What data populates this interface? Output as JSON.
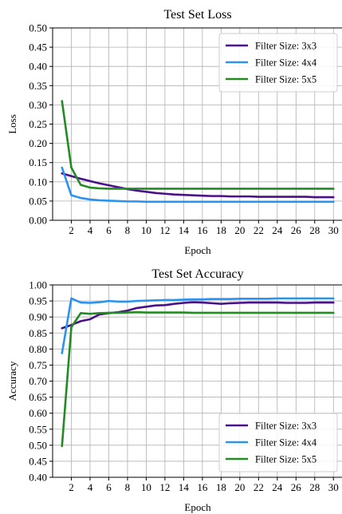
{
  "chart_data": [
    {
      "type": "line",
      "title": "Test Set Loss",
      "xlabel": "Epoch",
      "ylabel": "Loss",
      "xlim": [
        0,
        31
      ],
      "ylim": [
        0.0,
        0.5
      ],
      "xticks": [
        2,
        4,
        6,
        8,
        10,
        12,
        14,
        16,
        18,
        20,
        22,
        24,
        26,
        28,
        30
      ],
      "yticks": [
        0.0,
        0.05,
        0.1,
        0.15,
        0.2,
        0.25,
        0.3,
        0.35,
        0.4,
        0.45,
        0.5
      ],
      "ytick_labels": [
        "0.00",
        "0.05",
        "0.10",
        "0.15",
        "0.20",
        "0.25",
        "0.30",
        "0.35",
        "0.40",
        "0.45",
        "0.50"
      ],
      "grid": true,
      "legend_position": "top-right",
      "x": [
        1,
        2,
        3,
        4,
        5,
        6,
        7,
        8,
        9,
        10,
        11,
        12,
        13,
        14,
        15,
        16,
        17,
        18,
        19,
        20,
        21,
        22,
        23,
        24,
        25,
        26,
        27,
        28,
        29,
        30
      ],
      "series": [
        {
          "name": "Filter Size: 3x3",
          "color": "#4b0f8a",
          "values": [
            0.122,
            0.115,
            0.108,
            0.102,
            0.096,
            0.091,
            0.086,
            0.081,
            0.077,
            0.074,
            0.071,
            0.069,
            0.067,
            0.066,
            0.065,
            0.064,
            0.063,
            0.063,
            0.062,
            0.062,
            0.062,
            0.061,
            0.061,
            0.061,
            0.061,
            0.061,
            0.061,
            0.06,
            0.06,
            0.06
          ]
        },
        {
          "name": "Filter Size: 4x4",
          "color": "#2a93f0",
          "values": [
            0.137,
            0.065,
            0.058,
            0.054,
            0.052,
            0.051,
            0.05,
            0.049,
            0.049,
            0.048,
            0.048,
            0.048,
            0.048,
            0.048,
            0.048,
            0.048,
            0.048,
            0.048,
            0.048,
            0.048,
            0.048,
            0.048,
            0.048,
            0.048,
            0.048,
            0.048,
            0.048,
            0.048,
            0.048,
            0.048
          ]
        },
        {
          "name": "Filter Size: 5x5",
          "color": "#238b23",
          "values": [
            0.31,
            0.137,
            0.092,
            0.085,
            0.083,
            0.082,
            0.082,
            0.082,
            0.082,
            0.082,
            0.082,
            0.082,
            0.082,
            0.082,
            0.082,
            0.082,
            0.082,
            0.082,
            0.082,
            0.082,
            0.082,
            0.082,
            0.082,
            0.082,
            0.082,
            0.082,
            0.082,
            0.082,
            0.082,
            0.082
          ]
        }
      ]
    },
    {
      "type": "line",
      "title": "Test Set Accuracy",
      "xlabel": "Epoch",
      "ylabel": "Accuracy",
      "xlim": [
        0,
        31
      ],
      "ylim": [
        0.4,
        1.0
      ],
      "xticks": [
        2,
        4,
        6,
        8,
        10,
        12,
        14,
        16,
        18,
        20,
        22,
        24,
        26,
        28,
        30
      ],
      "yticks": [
        0.4,
        0.45,
        0.5,
        0.55,
        0.6,
        0.65,
        0.7,
        0.75,
        0.8,
        0.85,
        0.9,
        0.95,
        1.0
      ],
      "ytick_labels": [
        "0.40",
        "0.45",
        "0.50",
        "0.55",
        "0.60",
        "0.65",
        "0.70",
        "0.75",
        "0.80",
        "0.85",
        "0.90",
        "0.95",
        "1.00"
      ],
      "grid": true,
      "legend_position": "bottom-right",
      "x": [
        1,
        2,
        3,
        4,
        5,
        6,
        7,
        8,
        9,
        10,
        11,
        12,
        13,
        14,
        15,
        16,
        17,
        18,
        19,
        20,
        21,
        22,
        23,
        24,
        25,
        26,
        27,
        28,
        29,
        30
      ],
      "series": [
        {
          "name": "Filter Size: 3x3",
          "color": "#4b0f8a",
          "values": [
            0.865,
            0.875,
            0.887,
            0.893,
            0.908,
            0.912,
            0.915,
            0.92,
            0.928,
            0.932,
            0.936,
            0.937,
            0.941,
            0.944,
            0.946,
            0.945,
            0.943,
            0.941,
            0.943,
            0.944,
            0.945,
            0.945,
            0.945,
            0.945,
            0.944,
            0.944,
            0.944,
            0.945,
            0.945,
            0.945
          ]
        },
        {
          "name": "Filter Size: 4x4",
          "color": "#2a93f0",
          "values": [
            0.787,
            0.958,
            0.945,
            0.944,
            0.946,
            0.95,
            0.948,
            0.948,
            0.95,
            0.951,
            0.952,
            0.953,
            0.953,
            0.954,
            0.955,
            0.955,
            0.956,
            0.956,
            0.956,
            0.957,
            0.957,
            0.957,
            0.957,
            0.958,
            0.958,
            0.958,
            0.958,
            0.958,
            0.958,
            0.958
          ]
        },
        {
          "name": "Filter Size: 5x5",
          "color": "#238b23",
          "values": [
            0.497,
            0.868,
            0.912,
            0.91,
            0.912,
            0.913,
            0.913,
            0.914,
            0.915,
            0.914,
            0.914,
            0.914,
            0.914,
            0.914,
            0.913,
            0.913,
            0.913,
            0.913,
            0.913,
            0.913,
            0.913,
            0.913,
            0.913,
            0.913,
            0.913,
            0.913,
            0.913,
            0.913,
            0.913,
            0.913
          ]
        }
      ]
    }
  ]
}
